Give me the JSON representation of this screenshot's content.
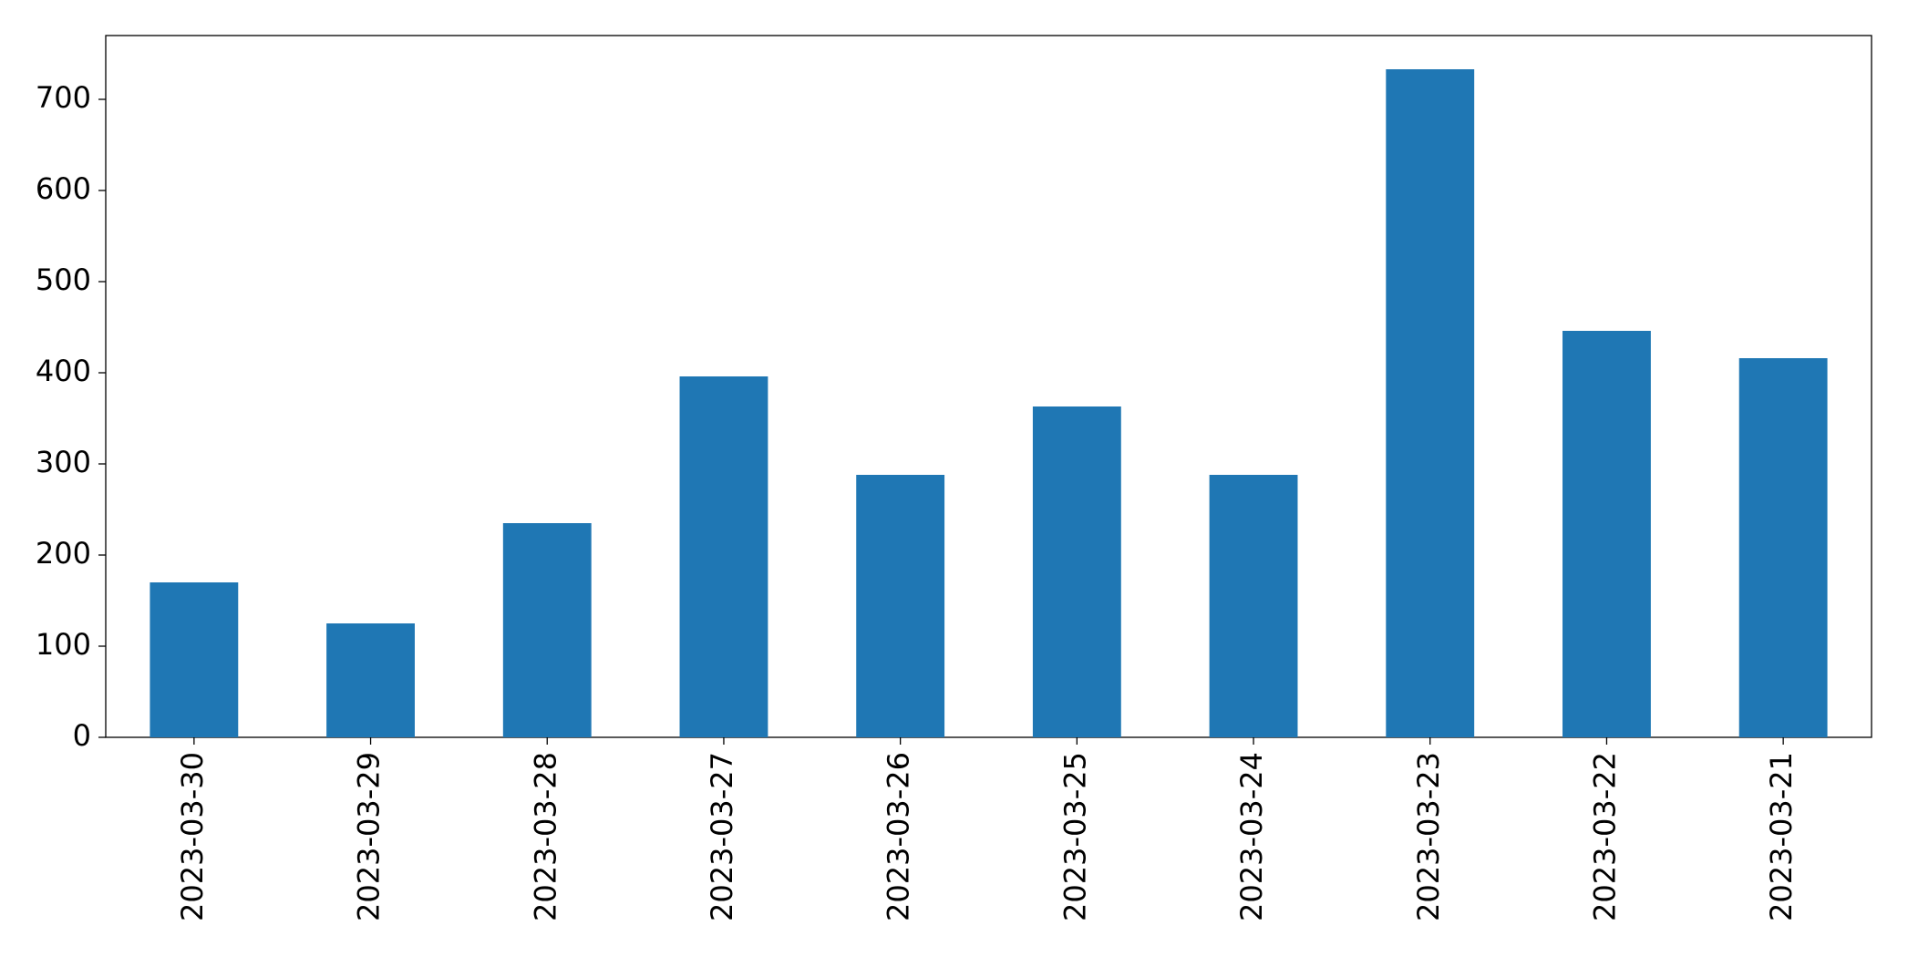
{
  "chart_data": {
    "type": "bar",
    "categories": [
      "2023-03-30",
      "2023-03-29",
      "2023-03-28",
      "2023-03-27",
      "2023-03-26",
      "2023-03-25",
      "2023-03-24",
      "2023-03-23",
      "2023-03-22",
      "2023-03-21"
    ],
    "values": [
      170,
      125,
      235,
      396,
      288,
      363,
      288,
      733,
      446,
      416
    ],
    "color": "#1f77b4",
    "ylim": [
      0,
      770
    ],
    "yticks": [
      0,
      100,
      200,
      300,
      400,
      500,
      600,
      700
    ],
    "grid": false
  }
}
